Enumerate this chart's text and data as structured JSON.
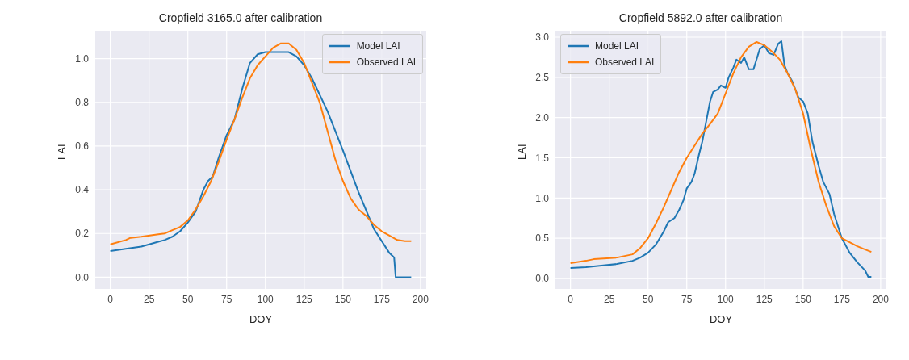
{
  "chart_data": [
    {
      "type": "line",
      "title": "Cropfield 3165.0 after calibration",
      "xlabel": "DOY",
      "ylabel": "LAI",
      "xlim": [
        -9.7,
        203.7
      ],
      "ylim": [
        -0.054,
        1.128
      ],
      "xticks": [
        0,
        25,
        50,
        75,
        100,
        125,
        150,
        175,
        200
      ],
      "yticks": [
        {
          "value": 0,
          "label": "0.0"
        },
        {
          "value": 0.2,
          "label": "0.2"
        },
        {
          "value": 0.4,
          "label": "0.4"
        },
        {
          "value": 0.6,
          "label": "0.6"
        },
        {
          "value": 0.8,
          "label": "0.8"
        },
        {
          "value": 1.0,
          "label": "1.0"
        }
      ],
      "grid": true,
      "legend": "top right",
      "line_style": "solid",
      "series": [
        {
          "name": "Model LAI",
          "color": "#1f77b4",
          "x": [
            0,
            10,
            20,
            25,
            30,
            35,
            40,
            45,
            50,
            55,
            60,
            63,
            66,
            70,
            75,
            80,
            85,
            90,
            95,
            100,
            115,
            120,
            125,
            130,
            140,
            150,
            160,
            170,
            180,
            183,
            184,
            194
          ],
          "values": [
            0.12,
            0.13,
            0.14,
            0.15,
            0.16,
            0.17,
            0.185,
            0.21,
            0.25,
            0.3,
            0.4,
            0.44,
            0.46,
            0.55,
            0.65,
            0.72,
            0.86,
            0.98,
            1.02,
            1.03,
            1.03,
            1.01,
            0.97,
            0.91,
            0.76,
            0.58,
            0.39,
            0.22,
            0.11,
            0.09,
            0.0,
            0.0
          ]
        },
        {
          "name": "Observed LAI",
          "color": "#ff7f0e",
          "x": [
            0,
            10,
            13,
            20,
            30,
            35,
            40,
            45,
            50,
            55,
            60,
            65,
            70,
            75,
            80,
            85,
            90,
            95,
            100,
            105,
            110,
            115,
            120,
            125,
            130,
            135,
            140,
            145,
            150,
            155,
            160,
            165,
            170,
            175,
            180,
            185,
            190,
            194
          ],
          "values": [
            0.15,
            0.17,
            0.18,
            0.185,
            0.195,
            0.2,
            0.215,
            0.23,
            0.26,
            0.31,
            0.37,
            0.44,
            0.53,
            0.63,
            0.72,
            0.82,
            0.91,
            0.97,
            1.01,
            1.05,
            1.07,
            1.07,
            1.04,
            0.98,
            0.89,
            0.8,
            0.67,
            0.54,
            0.44,
            0.36,
            0.31,
            0.28,
            0.24,
            0.21,
            0.19,
            0.17,
            0.165,
            0.165
          ]
        }
      ]
    },
    {
      "type": "line",
      "title": "Cropfield 5892.0 after calibration",
      "xlabel": "DOY",
      "ylabel": "LAI",
      "xlim": [
        -9.7,
        203.7
      ],
      "ylim": [
        -0.13,
        3.08
      ],
      "xticks": [
        0,
        25,
        50,
        75,
        100,
        125,
        150,
        175,
        200
      ],
      "yticks": [
        {
          "value": 0,
          "label": "0.0"
        },
        {
          "value": 0.5,
          "label": "0.5"
        },
        {
          "value": 1.0,
          "label": "1.0"
        },
        {
          "value": 1.5,
          "label": "1.5"
        },
        {
          "value": 2.0,
          "label": "2.0"
        },
        {
          "value": 2.5,
          "label": "2.5"
        },
        {
          "value": 3.0,
          "label": "3.0"
        }
      ],
      "grid": true,
      "legend": "top left",
      "line_style": "solid",
      "series": [
        {
          "name": "Model LAI",
          "color": "#1f77b4",
          "x": [
            0,
            10,
            20,
            30,
            40,
            45,
            50,
            55,
            60,
            63,
            67,
            70,
            73,
            75,
            78,
            80,
            83,
            85,
            88,
            90,
            92,
            95,
            97,
            100,
            102,
            105,
            107,
            110,
            112,
            115,
            118,
            122,
            125,
            128,
            131,
            134,
            136,
            138,
            140,
            143,
            147,
            150,
            153,
            156,
            160,
            163,
            167,
            170,
            175,
            180,
            185,
            190,
            192,
            194
          ],
          "values": [
            0.13,
            0.14,
            0.16,
            0.18,
            0.22,
            0.26,
            0.32,
            0.42,
            0.58,
            0.7,
            0.75,
            0.85,
            0.98,
            1.12,
            1.2,
            1.3,
            1.55,
            1.7,
            2.0,
            2.2,
            2.32,
            2.35,
            2.4,
            2.37,
            2.5,
            2.62,
            2.72,
            2.68,
            2.75,
            2.6,
            2.6,
            2.85,
            2.9,
            2.8,
            2.78,
            2.92,
            2.95,
            2.65,
            2.55,
            2.45,
            2.25,
            2.2,
            2.05,
            1.7,
            1.4,
            1.2,
            1.05,
            0.8,
            0.5,
            0.32,
            0.2,
            0.1,
            0.02,
            0.02
          ]
        },
        {
          "name": "Observed LAI",
          "color": "#ff7f0e",
          "x": [
            0,
            10,
            15,
            30,
            40,
            45,
            50,
            55,
            60,
            65,
            70,
            75,
            80,
            85,
            90,
            95,
            100,
            105,
            110,
            115,
            120,
            125,
            130,
            135,
            140,
            145,
            150,
            155,
            160,
            165,
            170,
            175,
            180,
            185,
            190,
            194
          ],
          "values": [
            0.19,
            0.22,
            0.24,
            0.26,
            0.3,
            0.38,
            0.5,
            0.68,
            0.88,
            1.1,
            1.32,
            1.5,
            1.65,
            1.8,
            1.92,
            2.05,
            2.3,
            2.55,
            2.75,
            2.88,
            2.94,
            2.9,
            2.82,
            2.72,
            2.55,
            2.35,
            2.05,
            1.6,
            1.2,
            0.9,
            0.65,
            0.5,
            0.45,
            0.4,
            0.36,
            0.33
          ]
        }
      ]
    }
  ]
}
